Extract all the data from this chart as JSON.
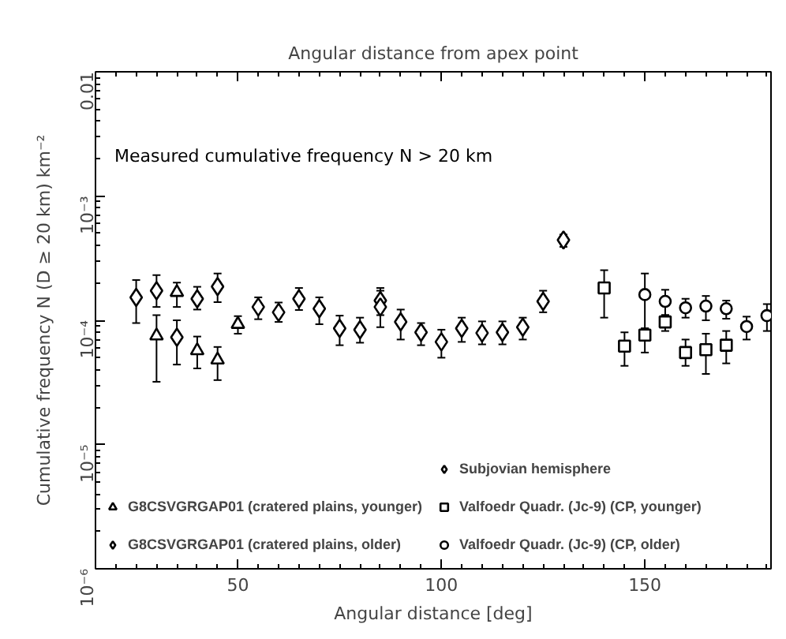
{
  "chart_data": {
    "type": "scatter",
    "title": "Angular distance from apex point",
    "xlabel": "Angular distance [deg]",
    "ylabel": "Cumulative frequency N (D ≥ 20 km) km⁻²",
    "annotations": [
      "Measured cumulative frequency N > 20 km"
    ],
    "log": "y",
    "xlim": [
      15,
      181
    ],
    "xticks": [
      50,
      100,
      150
    ],
    "ylim": [
      1e-06,
      0.01
    ],
    "yticks": [
      {
        "value": 1e-06,
        "label": "10⁻⁶"
      },
      {
        "value": 1e-05,
        "label": "10⁻⁵"
      },
      {
        "value": 0.0001,
        "label": "10⁻⁴"
      },
      {
        "value": 0.001,
        "label": "10⁻³"
      },
      {
        "value": 0.01,
        "label": "0.01"
      }
    ],
    "grid": false,
    "legend": "bottom",
    "series": [
      {
        "name": "Subjovian hemisphere",
        "color": "#000000",
        "marker": "diamond",
        "x": [
          85,
          90,
          95,
          100,
          105,
          110,
          115,
          120,
          125,
          130
        ],
        "values": [
          0.000144,
          9.7e-05,
          8e-05,
          6.7e-05,
          8.6e-05,
          7.9e-05,
          8e-05,
          8.8e-05,
          0.000142,
          0.000442
        ],
        "errors": [
          [
            0.00011,
            0.000182
          ],
          [
            7e-05,
            0.000122
          ],
          [
            6.3e-05,
            9.5e-05
          ],
          [
            5e-05,
            8.4e-05
          ],
          [
            6.7e-05,
            0.000105
          ],
          [
            6.4e-05,
            9.8e-05
          ],
          [
            6.4e-05,
            9.8e-05
          ],
          [
            7e-05,
            0.000105
          ],
          [
            0.000116,
            0.000173
          ],
          [
            0.00039,
            0.00049
          ]
        ]
      },
      {
        "name": "G8CSVGRGAP01 (cratered plains, younger)",
        "color": "#000000",
        "marker": "triangle",
        "x": [
          30,
          35,
          40,
          45,
          50
        ],
        "values": [
          7.5e-05,
          0.000168,
          5.7e-05,
          4.8e-05,
          9.3e-05
        ],
        "errors": [
          [
            3.2e-05,
            0.00011
          ],
          [
            0.000128,
            0.000201
          ],
          [
            4.1e-05,
            7.4e-05
          ],
          [
            3.3e-05,
            6.1e-05
          ],
          [
            7.8e-05,
            0.000108
          ]
        ]
      },
      {
        "name": "Valfoedr Quadr. (Jc-9) (CP, younger)",
        "color": "#000000",
        "marker": "square",
        "x": [
          140,
          145,
          150,
          155,
          160,
          165,
          170
        ],
        "values": [
          0.000182,
          6.2e-05,
          7.6e-05,
          9.7e-05,
          5.5e-05,
          5.8e-05,
          6.3e-05
        ],
        "errors": [
          [
            0.000105,
            0.000253
          ],
          [
            4.3e-05,
            8e-05
          ],
          [
            5.5e-05,
            8.6e-05
          ],
          [
            8.2e-05,
            0.00011
          ],
          [
            4.3e-05,
            7e-05
          ],
          [
            3.7e-05,
            7.8e-05
          ],
          [
            4.5e-05,
            8.2e-05
          ]
        ]
      },
      {
        "name": "G8CSVGRGAP01 (cratered plains, older)",
        "color": "#000000",
        "marker": "diamond",
        "x": [
          25,
          30,
          35,
          40,
          45,
          55,
          60,
          65,
          70,
          75,
          80,
          85
        ],
        "values": [
          0.000153,
          0.000173,
          7.3e-05,
          0.000149,
          0.000187,
          0.000128,
          0.000116,
          0.000149,
          0.000124,
          8.6e-05,
          8.4e-05,
          0.000128
        ],
        "errors": [
          [
            9.5e-05,
            0.000211
          ],
          [
            0.000128,
            0.000231
          ],
          [
            4.4e-05,
            0.0001
          ],
          [
            0.000122,
            0.000186
          ],
          [
            0.00014,
            0.000238
          ],
          [
            0.000102,
            0.000153
          ],
          [
            9.7e-05,
            0.000139
          ],
          [
            0.000121,
            0.000182
          ],
          [
            9.3e-05,
            0.000153
          ],
          [
            6.3e-05,
            0.000109
          ],
          [
            6.6e-05,
            0.000105
          ],
          [
            8.8e-05,
            0.000173
          ]
        ]
      },
      {
        "name": "Valfoedr Quadr. (Jc-9) (CP, older)",
        "color": "#000000",
        "marker": "circle",
        "x": [
          150,
          155,
          160,
          165,
          170,
          175,
          180
        ],
        "values": [
          0.000161,
          0.000142,
          0.000126,
          0.00013,
          0.000124,
          8.9e-05,
          0.000109
        ],
        "errors": [
          [
            8.6e-05,
            0.000238
          ],
          [
            0.00011,
            0.000176
          ],
          [
            0.000105,
            0.000149
          ],
          [
            0.0001,
            0.000157
          ],
          [
            0.000103,
            0.000144
          ],
          [
            7e-05,
            0.000107
          ],
          [
            8.2e-05,
            0.000135
          ]
        ]
      }
    ]
  }
}
